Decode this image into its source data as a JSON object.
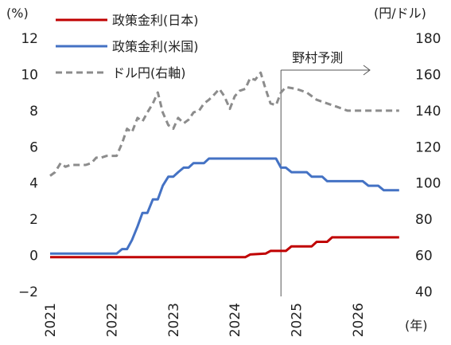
{
  "chart_data": {
    "type": "line",
    "title": "",
    "left_axis": {
      "unit": "(%)",
      "ylim": [
        -2,
        12
      ],
      "ticks": [
        "−2",
        "0",
        "2",
        "4",
        "6",
        "8",
        "10",
        "12"
      ]
    },
    "right_axis": {
      "unit": "(円/ドル)",
      "ylim": [
        40,
        180
      ],
      "ticks": [
        "40",
        "60",
        "80",
        "100",
        "120",
        "140",
        "160",
        "180"
      ]
    },
    "x_axis": {
      "unit": "(年)",
      "xlim": [
        2021.0,
        2026.75
      ],
      "ticks": [
        "2021",
        "2022",
        "2023",
        "2024",
        "2025",
        "2026"
      ]
    },
    "grid": false,
    "legend_position": "top-left",
    "forecast_marker": {
      "x": 2024.75,
      "label": "野村予測"
    },
    "series": [
      {
        "name": "政策金利(日本)",
        "axis": "left",
        "style": "solid",
        "color": "#c00000",
        "points": [
          [
            2021.0,
            -0.1
          ],
          [
            2024.17,
            -0.1
          ],
          [
            2024.25,
            0.05
          ],
          [
            2024.5,
            0.1
          ],
          [
            2024.58,
            0.25
          ],
          [
            2024.83,
            0.25
          ],
          [
            2024.92,
            0.5
          ],
          [
            2025.25,
            0.5
          ],
          [
            2025.33,
            0.75
          ],
          [
            2025.5,
            0.75
          ],
          [
            2025.58,
            1.0
          ],
          [
            2026.67,
            1.0
          ]
        ]
      },
      {
        "name": "政策金利(米国)",
        "axis": "left",
        "style": "solid",
        "color": "#4472c4",
        "points": [
          [
            2021.0,
            0.1
          ],
          [
            2022.08,
            0.1
          ],
          [
            2022.17,
            0.35
          ],
          [
            2022.25,
            0.35
          ],
          [
            2022.33,
            0.85
          ],
          [
            2022.42,
            1.6
          ],
          [
            2022.5,
            2.35
          ],
          [
            2022.58,
            2.35
          ],
          [
            2022.67,
            3.1
          ],
          [
            2022.75,
            3.1
          ],
          [
            2022.83,
            3.85
          ],
          [
            2022.92,
            4.35
          ],
          [
            2023.0,
            4.35
          ],
          [
            2023.08,
            4.6
          ],
          [
            2023.17,
            4.85
          ],
          [
            2023.25,
            4.85
          ],
          [
            2023.33,
            5.1
          ],
          [
            2023.5,
            5.1
          ],
          [
            2023.58,
            5.35
          ],
          [
            2024.67,
            5.35
          ],
          [
            2024.75,
            4.85
          ],
          [
            2024.83,
            4.85
          ],
          [
            2024.92,
            4.6
          ],
          [
            2025.17,
            4.6
          ],
          [
            2025.25,
            4.35
          ],
          [
            2025.42,
            4.35
          ],
          [
            2025.5,
            4.1
          ],
          [
            2026.08,
            4.1
          ],
          [
            2026.17,
            3.85
          ],
          [
            2026.33,
            3.85
          ],
          [
            2026.42,
            3.6
          ],
          [
            2026.67,
            3.6
          ]
        ]
      },
      {
        "name": "ドル円(右軸)",
        "axis": "right",
        "style": "dashed",
        "color": "#8c8c8c",
        "points": [
          [
            2021.0,
            104
          ],
          [
            2021.08,
            106
          ],
          [
            2021.17,
            111
          ],
          [
            2021.25,
            109
          ],
          [
            2021.33,
            110
          ],
          [
            2021.42,
            110
          ],
          [
            2021.5,
            110
          ],
          [
            2021.58,
            110
          ],
          [
            2021.67,
            111
          ],
          [
            2021.75,
            114
          ],
          [
            2021.83,
            114
          ],
          [
            2021.92,
            115
          ],
          [
            2022.0,
            115
          ],
          [
            2022.08,
            115
          ],
          [
            2022.17,
            122
          ],
          [
            2022.25,
            130
          ],
          [
            2022.33,
            128
          ],
          [
            2022.42,
            136
          ],
          [
            2022.5,
            134
          ],
          [
            2022.58,
            139
          ],
          [
            2022.67,
            144
          ],
          [
            2022.75,
            150
          ],
          [
            2022.83,
            139
          ],
          [
            2022.92,
            132
          ],
          [
            2023.0,
            130
          ],
          [
            2023.08,
            136
          ],
          [
            2023.17,
            133
          ],
          [
            2023.25,
            135
          ],
          [
            2023.33,
            139
          ],
          [
            2023.42,
            140
          ],
          [
            2023.5,
            144
          ],
          [
            2023.58,
            146
          ],
          [
            2023.67,
            149
          ],
          [
            2023.75,
            152
          ],
          [
            2023.83,
            148
          ],
          [
            2023.92,
            141
          ],
          [
            2024.0,
            148
          ],
          [
            2024.08,
            151
          ],
          [
            2024.17,
            152
          ],
          [
            2024.25,
            158
          ],
          [
            2024.33,
            157
          ],
          [
            2024.42,
            161
          ],
          [
            2024.5,
            152
          ],
          [
            2024.58,
            144
          ],
          [
            2024.67,
            143
          ],
          [
            2024.75,
            150
          ],
          [
            2024.83,
            153
          ],
          [
            2025.0,
            152
          ],
          [
            2025.17,
            150
          ],
          [
            2025.33,
            146
          ],
          [
            2025.5,
            144
          ],
          [
            2025.67,
            142
          ],
          [
            2025.83,
            140
          ],
          [
            2026.0,
            140
          ],
          [
            2026.33,
            140
          ],
          [
            2026.67,
            140
          ]
        ]
      }
    ]
  }
}
